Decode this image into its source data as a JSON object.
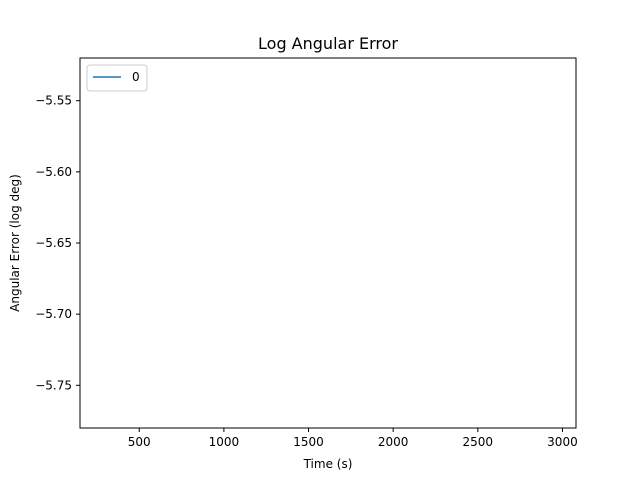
{
  "chart_data": {
    "type": "line",
    "title": "Log Angular Error",
    "xlabel": "Time (s)",
    "ylabel": "Angular Error (log deg)",
    "xlim": [
      150,
      3080
    ],
    "ylim": [
      -5.78,
      -5.52
    ],
    "x_ticks": [
      500,
      1000,
      1500,
      2000,
      2500,
      3000
    ],
    "x_tick_labels": [
      "500",
      "1000",
      "1500",
      "2000",
      "2500",
      "3000"
    ],
    "y_ticks": [
      -5.55,
      -5.6,
      -5.65,
      -5.7,
      -5.75
    ],
    "y_tick_labels": [
      "−5.55",
      "−5.60",
      "−5.65",
      "−5.70",
      "−5.75"
    ],
    "grid": false,
    "legend_position": "upper-left",
    "series": [
      {
        "name": "0",
        "color": "#1f77b4",
        "x": [],
        "y": []
      }
    ]
  }
}
